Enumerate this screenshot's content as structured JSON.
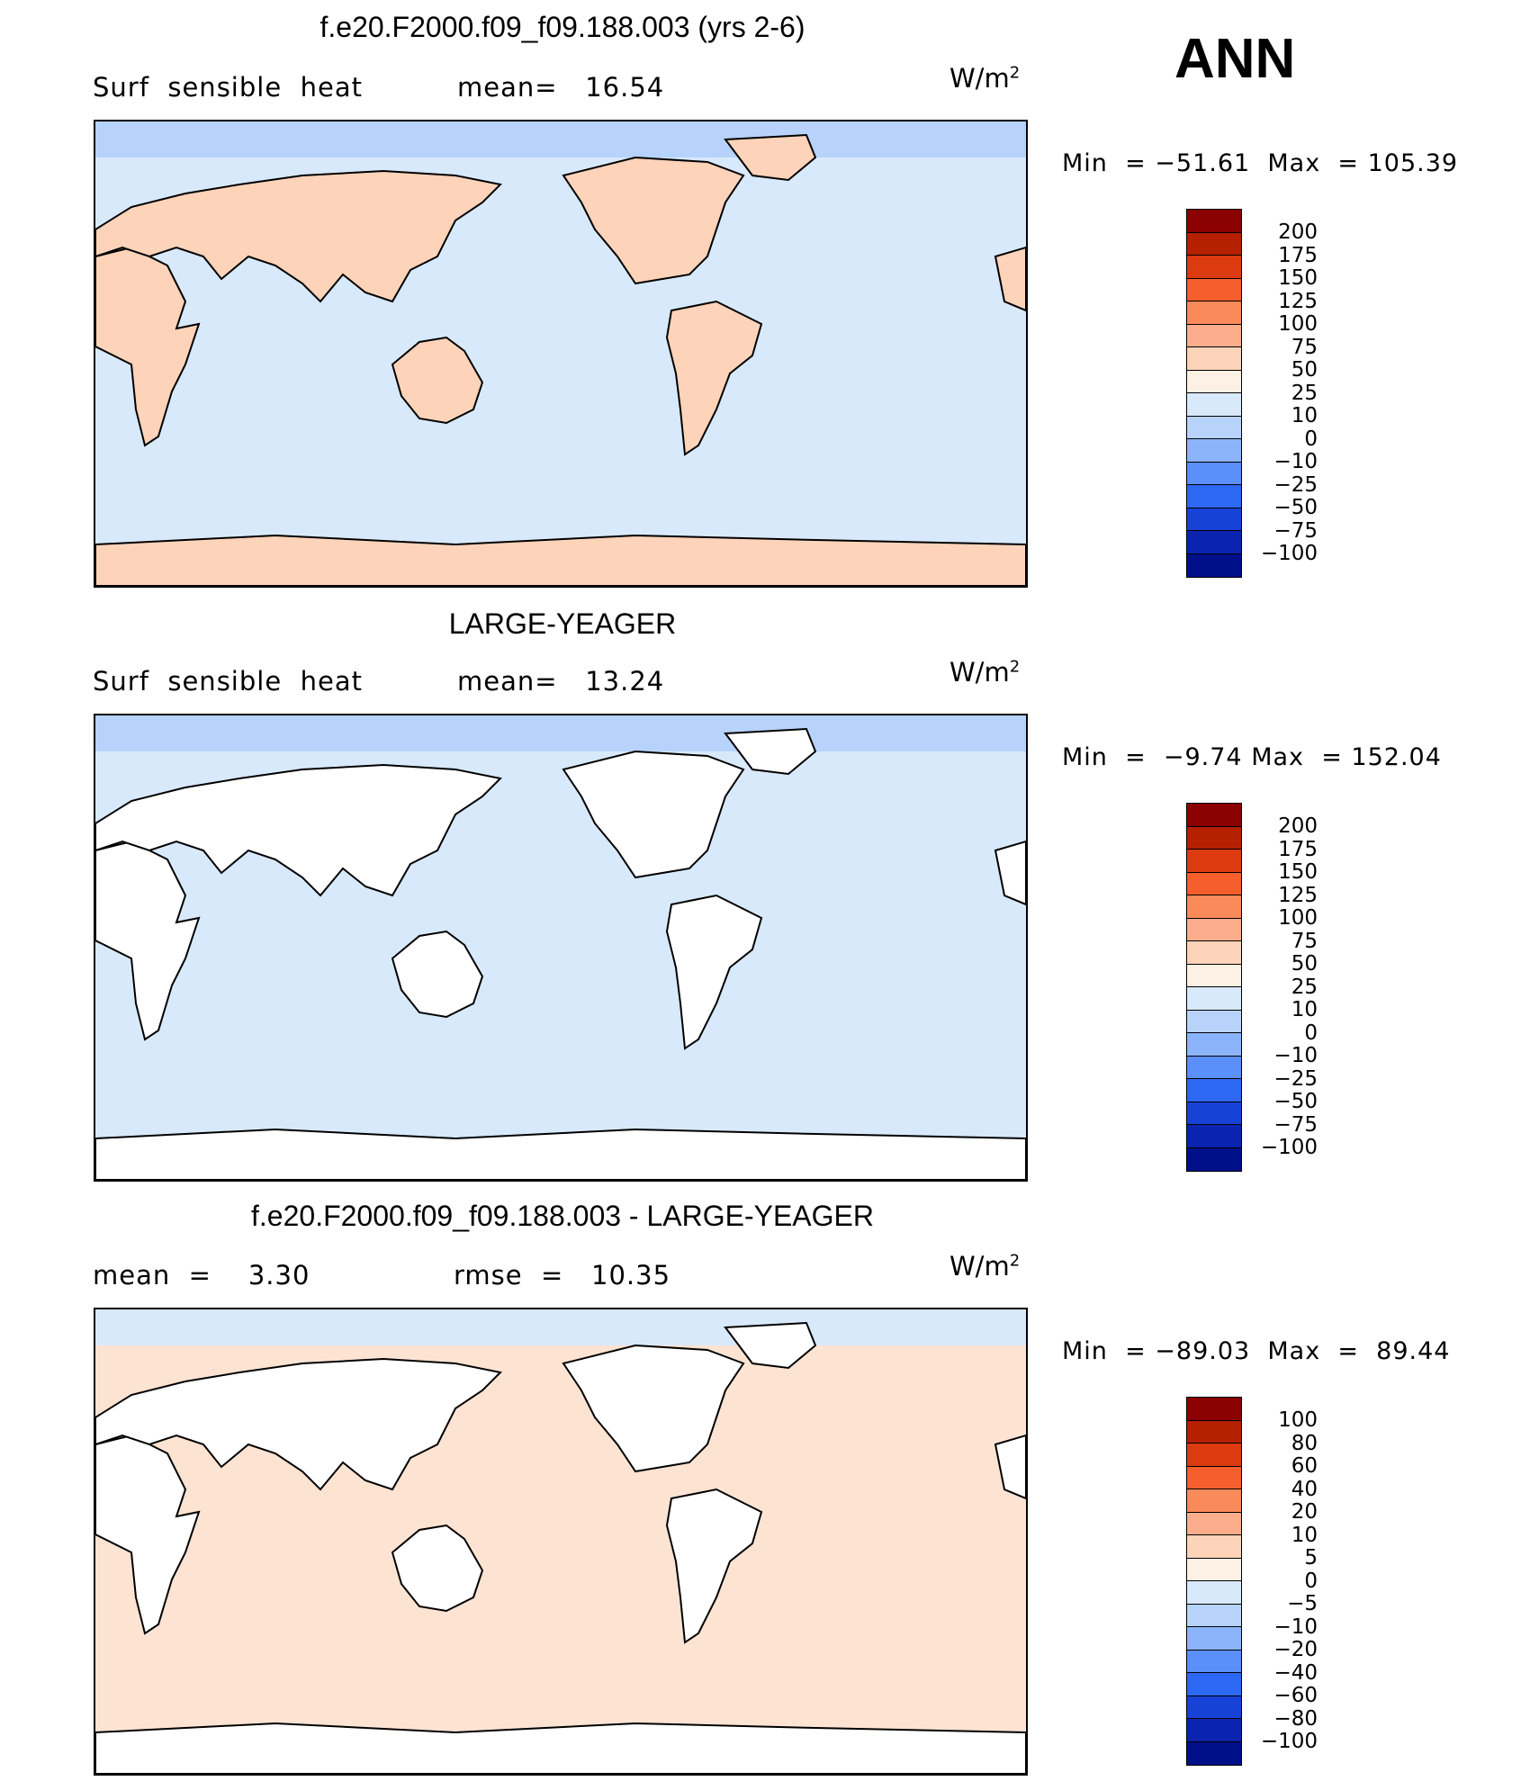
{
  "season": "ANN",
  "panels": [
    {
      "title": "f.e20.F2000.f09_f09.188.003 (yrs 2-6)",
      "left_label": "Surf  sensible  heat",
      "stat_label": "mean=",
      "stat_value": "16.54",
      "units": "W/m",
      "units_exp": "2",
      "min_label": "Min  =",
      "min_value": "−51.61",
      "max_label": "Max  =",
      "max_value": "105.39",
      "colorbar_ticks": [
        "200",
        "175",
        "150",
        "125",
        "100",
        "75",
        "50",
        "25",
        "10",
        "0",
        "−10",
        "−25",
        "−50",
        "−75",
        "−100"
      ],
      "colorbar_colors": [
        "#8b0000",
        "#b52000",
        "#dc3a10",
        "#f65e2c",
        "#fb8a5a",
        "#fcae8c",
        "#fdd3b9",
        "#fdf0e4",
        "#d8e9fb",
        "#b7d3fb",
        "#8cb4fb",
        "#5b8ff9",
        "#2d68f5",
        "#1742d8",
        "#0a24b0",
        "#00108a"
      ],
      "ocean_color": "#d8e9fb",
      "land_color": "#fdd3b9"
    },
    {
      "title": "LARGE-YEAGER",
      "left_label": "Surf  sensible  heat",
      "stat_label": "mean=",
      "stat_value": "13.24",
      "units": "W/m",
      "units_exp": "2",
      "min_label": "Min  =",
      "min_value": "−9.74",
      "max_label": "Max  =",
      "max_value": "152.04",
      "colorbar_ticks": [
        "200",
        "175",
        "150",
        "125",
        "100",
        "75",
        "50",
        "25",
        "10",
        "0",
        "−10",
        "−25",
        "−50",
        "−75",
        "−100"
      ],
      "colorbar_colors": [
        "#8b0000",
        "#b52000",
        "#dc3a10",
        "#f65e2c",
        "#fb8a5a",
        "#fcae8c",
        "#fdd3b9",
        "#fdf0e4",
        "#d8e9fb",
        "#b7d3fb",
        "#8cb4fb",
        "#5b8ff9",
        "#2d68f5",
        "#1742d8",
        "#0a24b0",
        "#00108a"
      ],
      "ocean_color": "#d8e9fb",
      "land_color": "#ffffff"
    },
    {
      "title": "f.e20.F2000.f09_f09.188.003 - LARGE-YEAGER",
      "left_label": "mean  =",
      "left_value": "3.30",
      "stat_label": "rmse  =",
      "stat_value": "10.35",
      "units": "W/m",
      "units_exp": "2",
      "min_label": "Min  =",
      "min_value": "−89.03",
      "max_label": "Max  =",
      "max_value": "89.44",
      "colorbar_ticks": [
        "100",
        "80",
        "60",
        "40",
        "20",
        "10",
        "5",
        "0",
        "−5",
        "−10",
        "−20",
        "−40",
        "−60",
        "−80",
        "−100"
      ],
      "colorbar_colors": [
        "#8b0000",
        "#b52000",
        "#dc3a10",
        "#f65e2c",
        "#fb8a5a",
        "#fcae8c",
        "#fdd3b9",
        "#fdf0e4",
        "#d8e9fb",
        "#b7d3fb",
        "#8cb4fb",
        "#5b8ff9",
        "#2d68f5",
        "#1742d8",
        "#0a24b0",
        "#00108a"
      ],
      "ocean_color": "#fde3d2",
      "land_color": "#ffffff"
    }
  ]
}
